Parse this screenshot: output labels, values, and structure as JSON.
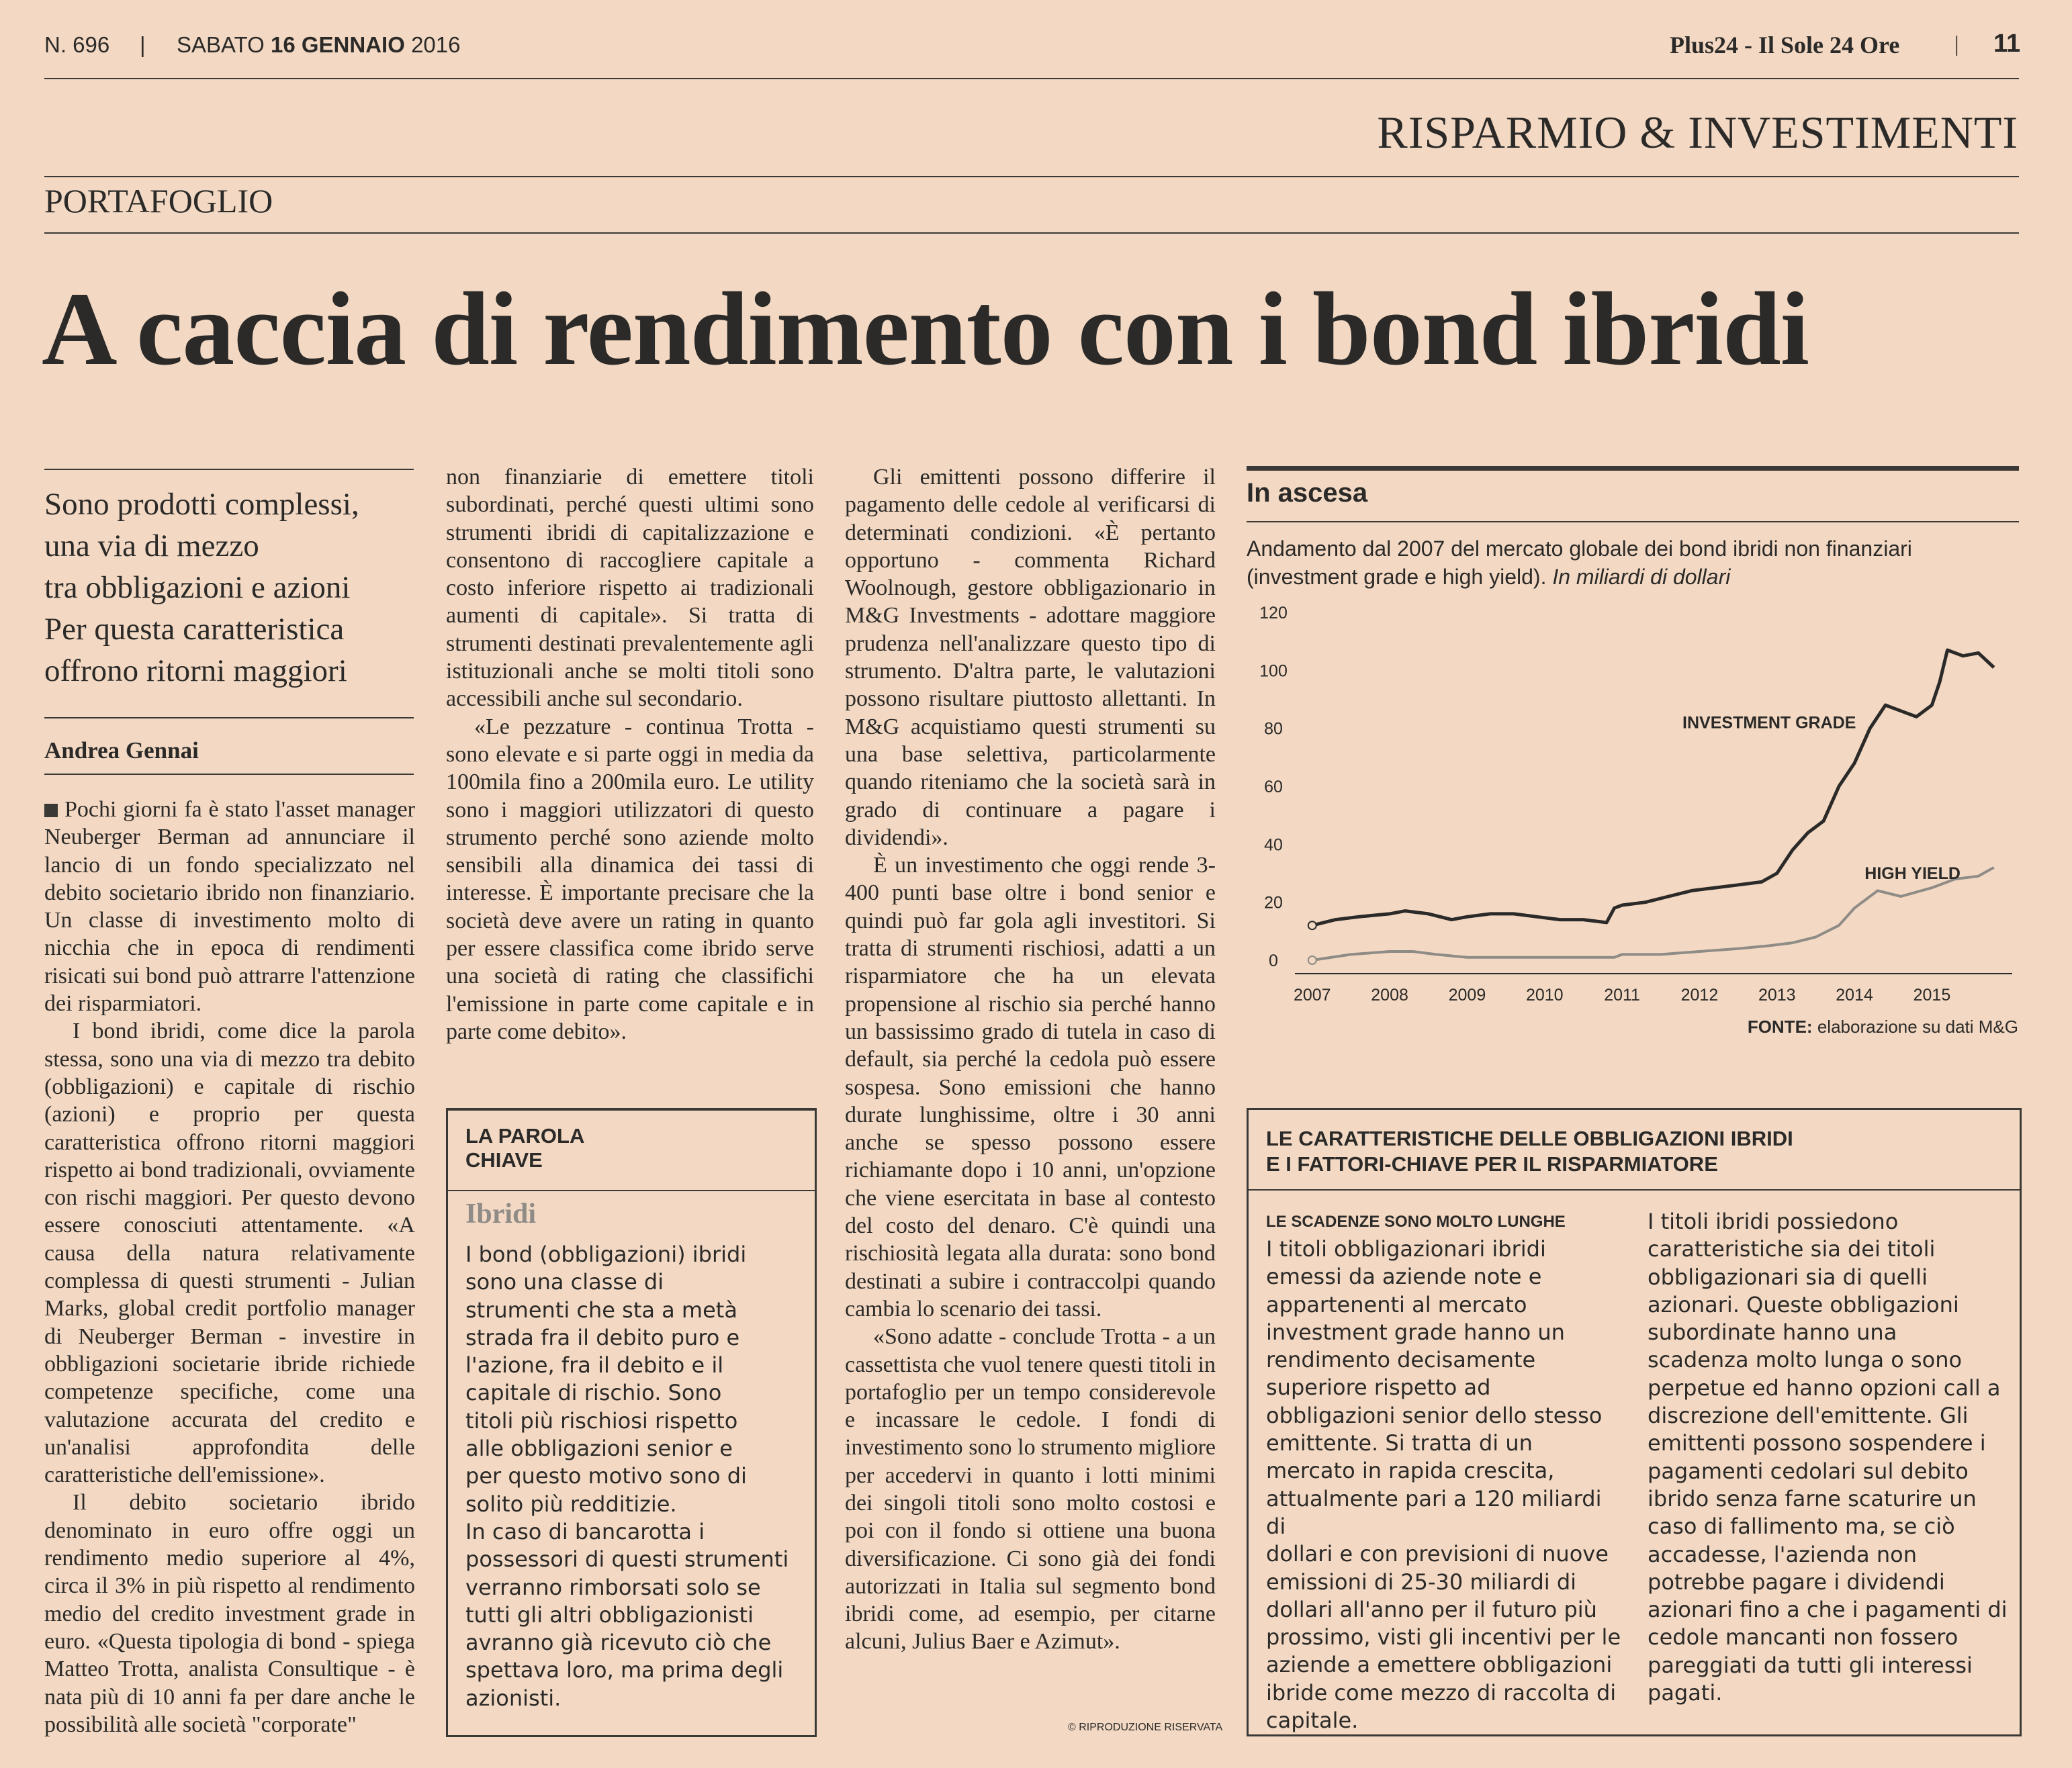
{
  "header": {
    "issue": "N. 696",
    "date_day": "SABATO",
    "date_bold": "16 GENNAIO",
    "date_year": "2016",
    "publication": "Plus24 - Il Sole 24 Ore",
    "page_number": "11"
  },
  "section_title": "RISPARMIO & INVESTIMENTI",
  "rubric": "PORTAFOGLIO",
  "headline": "A caccia di rendimento con i bond ibridi",
  "subheadline": [
    "Sono prodotti complessi,",
    "una via di mezzo",
    "tra obbligazioni e azioni",
    "Per questa caratteristica",
    "offrono ritorni maggiori"
  ],
  "author": "Andrea Gennai",
  "col1": [
    "Pochi giorni fa è stato l'asset manager Neuberger Berman ad annunciare il lancio di un fondo specializzato nel debito societario ibrido non finanziario. Un classe di investimento molto di nicchia che in epoca di rendimenti risicati sui bond può attrarre l'attenzione dei risparmiatori.",
    "I bond ibridi, come dice la parola stessa, sono una via di mezzo tra debito (obbligazioni) e capitale di rischio (azioni) e proprio per questa caratteristica offrono ritorni maggiori rispetto ai bond tradizionali, ovviamente con rischi maggiori. Per questo devono essere conosciuti attentamente. «A causa della natura relativamente complessa di questi strumenti - Julian Marks, global credit portfolio manager di Neuberger Berman - investire in obbligazioni societarie ibride richiede competenze specifiche, come una valutazione accurata del credito e un'analisi approfondita delle caratteristiche dell'emissione».",
    "Il debito societario ibrido denominato in euro offre oggi un rendimento medio superiore al 4%, circa il 3% in più rispetto al rendimento medio del credito investment grade in euro. «Questa tipologia di bond - spiega Matteo Trotta, analista Consultique - è nata più di 10 anni fa per dare anche le possibilità alle società \"corporate\""
  ],
  "col2": [
    "non finanziarie di emettere titoli subordinati, perché questi ultimi sono strumenti ibridi di capitalizzazione e consentono di raccogliere capitale a costo inferiore rispetto ai tradizionali aumenti di capitale». Si tratta di strumenti destinati prevalentemente agli istituzionali anche se molti titoli sono accessibili anche sul secondario.",
    "«Le pezzature - continua Trotta - sono elevate e si parte oggi in media da 100mila fino a 200mila euro. Le utility sono i maggiori utilizzatori di questo strumento perché sono aziende molto sensibili alla dinamica dei tassi di interesse. È importante precisare che la società deve avere un rating in quanto per essere classifica come ibrido serve una società di rating che classifichi l'emissione in parte come capitale e in parte come debito»."
  ],
  "keyword_box": {
    "title_line1": "LA PAROLA",
    "title_line2": "CHIAVE",
    "term": "Ibridi",
    "lines": [
      "I bond (obbligazioni) ibridi",
      "sono una classe di",
      "strumenti che sta a metà",
      "strada fra il debito puro e",
      "l'azione, fra il debito e il",
      "capitale di rischio. Sono",
      "titoli più rischiosi rispetto",
      "alle obbligazioni senior e",
      "per questo motivo sono di",
      "solito più redditizie.",
      "In caso di bancarotta i",
      "possessori di questi strumenti",
      "verranno rimborsati solo se",
      "tutti gli altri obbligazionisti",
      "avranno già ricevuto ciò che",
      "spettava loro, ma prima degli",
      "azionisti."
    ]
  },
  "col3": [
    "Gli emittenti possono differire il pagamento delle cedole al verificarsi di determinati condizioni. «È pertanto opportuno - commenta Richard Woolnough, gestore obbligazionario in M&G Investments - adottare maggiore prudenza nell'analizzare questo tipo di strumento. D'altra parte, le valutazioni possono risultare piuttosto allettanti. In M&G acquistiamo questi strumenti su una base selettiva, particolarmente quando riteniamo che la società sarà in grado di continuare a pagare i dividendi».",
    "È un investimento che oggi rende 3-400 punti base oltre i bond senior e quindi può far gola agli investitori. Si tratta di strumenti rischiosi, adatti a un risparmiatore che ha un elevata propensione al rischio sia perché hanno un bassissimo grado di tutela in caso di default, sia perché la cedola può essere sospesa. Sono emissioni che hanno durate lunghissime, oltre i 30 anni anche se spesso possono essere richiamante dopo i 10 anni, un'opzione che viene esercitata in base al contesto del costo del denaro. C'è quindi una rischiosità legata alla durata: sono bond destinati a subire i contraccolpi quando cambia lo scenario dei tassi.",
    "«Sono adatte - conclude Trotta - a un cassettista che vuol tenere questi titoli in portafoglio per un tempo considerevole e incassare le cedole. I fondi di investimento sono lo strumento migliore per accedervi in quanto i lotti minimi dei singoli titoli sono molto costosi e poi con il fondo si ottiene una buona diversificazione. Ci sono già dei fondi autorizzati in Italia sul segmento bond ibridi come, ad esempio, per citarne alcuni, Julius Baer e Azimut»."
  ],
  "copyright": "© RIPRODUZIONE RISERVATA",
  "chart_box": {
    "title": "In ascesa",
    "subtitle_line1": "Andamento dal 2007 del mercato globale dei bond ibridi non finanziari",
    "subtitle_line2": "(investment grade e high yield).",
    "subtitle_italic": "In miliardi di dollari",
    "source_label": "FONTE:",
    "source_text": "elaborazione su dati M&G"
  },
  "chart_data": {
    "type": "line",
    "title": "In ascesa",
    "xlabel": "",
    "ylabel": "",
    "ylim": [
      0,
      120
    ],
    "yticks": [
      "0",
      "20",
      "40",
      "60",
      "80",
      "100",
      "120"
    ],
    "xticks": [
      "2007",
      "2008",
      "2009",
      "2010",
      "2011",
      "2012",
      "2013",
      "2014",
      "2015"
    ],
    "grid": false,
    "series": [
      {
        "name": "INVESTMENT GRADE",
        "color": "#2b2a28",
        "x": [
          2007.0,
          2007.3,
          2007.6,
          2008.0,
          2008.2,
          2008.5,
          2008.8,
          2009.0,
          2009.3,
          2009.6,
          2009.9,
          2010.2,
          2010.5,
          2010.8,
          2010.9,
          2011.0,
          2011.3,
          2011.6,
          2011.9,
          2012.2,
          2012.5,
          2012.8,
          2013.0,
          2013.2,
          2013.4,
          2013.6,
          2013.8,
          2014.0,
          2014.2,
          2014.4,
          2014.6,
          2014.8,
          2015.0,
          2015.1,
          2015.2,
          2015.4,
          2015.6,
          2015.8
        ],
        "values": [
          12,
          14,
          15,
          16,
          17,
          16,
          14,
          15,
          16,
          16,
          15,
          14,
          14,
          13,
          18,
          19,
          20,
          22,
          24,
          25,
          26,
          27,
          30,
          38,
          44,
          48,
          60,
          68,
          80,
          88,
          86,
          84,
          88,
          96,
          107,
          105,
          106,
          101
        ]
      },
      {
        "name": "HIGH YIELD",
        "color": "#8f8b86",
        "x": [
          2007.0,
          2007.5,
          2008.0,
          2008.3,
          2008.6,
          2009.0,
          2009.5,
          2010.0,
          2010.5,
          2010.9,
          2011.0,
          2011.5,
          2012.0,
          2012.5,
          2012.9,
          2013.2,
          2013.5,
          2013.8,
          2014.0,
          2014.3,
          2014.6,
          2015.0,
          2015.3,
          2015.6,
          2015.8
        ],
        "values": [
          0,
          2,
          3,
          3,
          2,
          1,
          1,
          1,
          1,
          1,
          2,
          2,
          3,
          4,
          5,
          6,
          8,
          12,
          18,
          24,
          22,
          25,
          28,
          29,
          32
        ]
      }
    ]
  },
  "facts_box": {
    "title_line1": "LE CARATTERISTICHE DELLE OBBLIGAZIONI IBRIDI",
    "title_line2": "E I FATTORI-CHIAVE PER IL RISPARMIATORE",
    "left_heading": "LE SCADENZE SONO MOLTO LUNGHE",
    "left_lines": [
      "I titoli obbligazionari ibridi",
      "emessi da aziende note e",
      "appartenenti al mercato",
      "investment grade hanno un",
      "rendimento decisamente",
      "superiore rispetto ad",
      "obbligazioni senior dello stesso",
      "emittente. Si tratta di un",
      "mercato in rapida crescita,",
      "attualmente pari a 120 miliardi di",
      "dollari e con previsioni di nuove",
      "emissioni di 25-30 miliardi di",
      "dollari all'anno per il futuro più",
      "prossimo, visti gli incentivi per le",
      "aziende a emettere obbligazioni",
      "ibride come mezzo di raccolta di",
      "capitale."
    ],
    "right_lines": [
      "I titoli ibridi possiedono",
      "caratteristiche sia dei titoli",
      "obbligazionari sia di quelli",
      "azionari. Queste obbligazioni",
      "subordinate hanno una",
      "scadenza molto lunga o sono",
      "perpetue ed hanno opzioni call a",
      "discrezione dell'emittente. Gli",
      "emittenti possono sospendere i",
      "pagamenti cedolari sul debito",
      "ibrido senza farne scaturire un",
      "caso di fallimento ma, se ciò",
      "accadesse, l'azienda non",
      "potrebbe pagare i dividendi",
      "azionari fino a che i pagamenti di",
      "cedole mancanti non fossero",
      "pareggiati da tutti gli interessi",
      "pagati."
    ]
  }
}
